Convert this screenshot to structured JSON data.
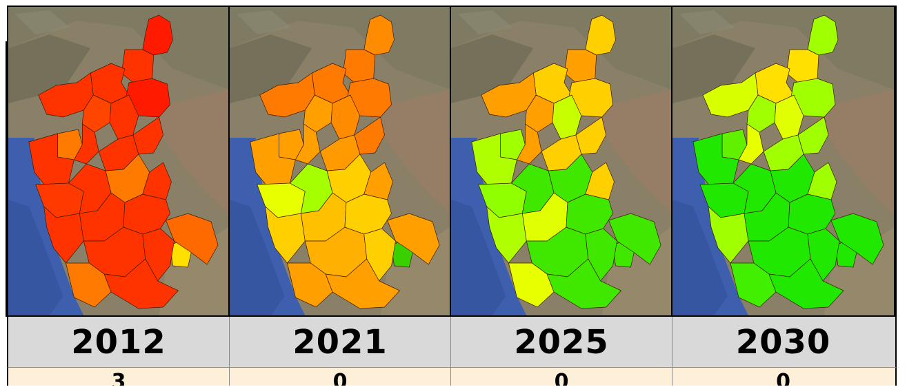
{
  "panels": [
    {
      "year": "2012",
      "bottom_value": "3",
      "region_colors": [
        "#ff1a00",
        "#ff3300",
        "#ff3300",
        "#ff1a00",
        "#ff3300",
        "#ff4500",
        "#ff3300",
        "#ff7a00",
        "#ff3300",
        "#ff3300",
        "#ff3300",
        "#ff3300",
        "#ff3a00",
        "#ff3300",
        "#ff7a00",
        "#ff3300",
        "#ff3300",
        "#ff3300",
        "#ff3300",
        "#ffe000",
        "#ff6a00",
        "#ff3300",
        "#ff3300",
        "#ff7a00",
        "#ff3300"
      ]
    },
    {
      "year": "2021",
      "bottom_value": "0",
      "region_colors": [
        "#ff8c00",
        "#ff7a00",
        "#ff7a00",
        "#ff7a00",
        "#ff7a00",
        "#ffa000",
        "#ff8c00",
        "#ffa000",
        "#ff7a00",
        "#ffa000",
        "#ff9a00",
        "#ffa000",
        "#e8ff00",
        "#a6ff00",
        "#ffd000",
        "#ffa000",
        "#ffd000",
        "#ffc000",
        "#ffd000",
        "#3ad000",
        "#ffa000",
        "#ffb000",
        "#ffd000",
        "#ffa000",
        "#ffa000"
      ]
    },
    {
      "year": "2025",
      "bottom_value": "0",
      "region_colors": [
        "#ffd000",
        "#ffa000",
        "#ffd000",
        "#ffd000",
        "#ffa000",
        "#ffa000",
        "#c8ff00",
        "#a0ff00",
        "#ffd000",
        "#ffa000",
        "#ffd000",
        "#b0ff00",
        "#90ff00",
        "#40e800",
        "#40e800",
        "#ffd000",
        "#b0ff00",
        "#e0ff00",
        "#40e800",
        "#40e800",
        "#40e800",
        "#40e800",
        "#40e800",
        "#e8ff00",
        "#40e800"
      ]
    },
    {
      "year": "2030",
      "bottom_value": "0",
      "region_colors": [
        "#a0ff00",
        "#ffe000",
        "#ffe000",
        "#a0ff00",
        "#d8ff00",
        "#a0ff00",
        "#e0ff00",
        "#60f000",
        "#a0ff00",
        "#e8ff00",
        "#a0ff00",
        "#20e800",
        "#20e800",
        "#20e800",
        "#20e800",
        "#a0ff00",
        "#a0ff00",
        "#20e800",
        "#20e800",
        "#20e800",
        "#20e800",
        "#20e800",
        "#20e800",
        "#40f000",
        "#20e800"
      ]
    }
  ]
}
